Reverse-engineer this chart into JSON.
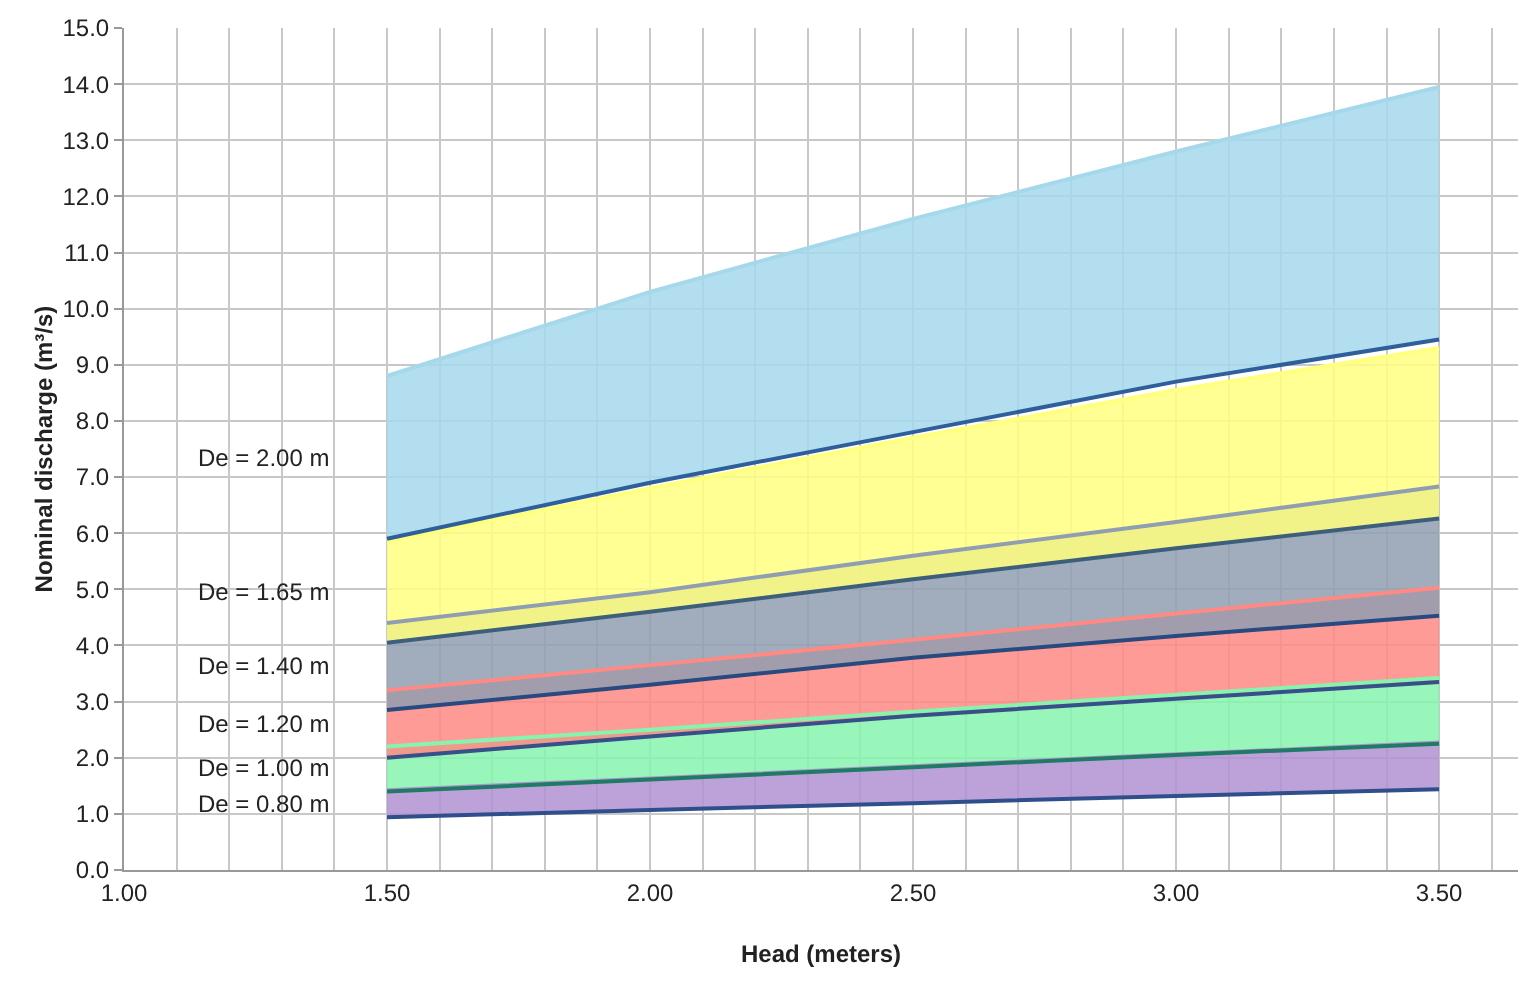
{
  "chart_data": {
    "type": "area",
    "xlabel": "Head (meters)",
    "ylabel": "Nominal discharge (m³/s)",
    "x": [
      1.5,
      2.0,
      2.5,
      3.0,
      3.5
    ],
    "series": [
      {
        "type": "line",
        "color": "#2e4f8c",
        "values": [
          0.94,
          1.07,
          1.19,
          1.32,
          1.44
        ]
      },
      {
        "name": "De = 0.80 m",
        "color": "#b092d2",
        "values": [
          1.42,
          1.63,
          1.85,
          2.06,
          2.27
        ]
      },
      {
        "type": "line",
        "color": "#1f7a66",
        "values": [
          1.4,
          1.61,
          1.83,
          2.05,
          2.25
        ]
      },
      {
        "name": "De = 1.00 m",
        "color": "#86f4ae",
        "values": [
          2.2,
          2.5,
          2.82,
          3.12,
          3.42
        ]
      },
      {
        "type": "line",
        "color": "#37508a",
        "values": [
          2.0,
          2.38,
          2.75,
          3.05,
          3.35
        ]
      },
      {
        "name": "De = 1.20 m",
        "color": "#ff8a84",
        "values": [
          3.2,
          3.65,
          4.1,
          4.57,
          5.03
        ]
      },
      {
        "type": "line",
        "color": "#294a80",
        "values": [
          2.85,
          3.3,
          3.78,
          4.17,
          4.53
        ]
      },
      {
        "name": "De = 1.40 m",
        "color": "#909eb2",
        "values": [
          4.4,
          4.95,
          5.6,
          6.2,
          6.83
        ]
      },
      {
        "type": "line",
        "color": "#3d5f7c",
        "values": [
          4.05,
          4.6,
          5.18,
          5.73,
          6.26
        ]
      },
      {
        "name": "De = 1.65 m",
        "color": "#ffff80",
        "values": [
          5.85,
          6.8,
          7.7,
          8.55,
          9.3
        ]
      },
      {
        "type": "line",
        "color": "#2f5f9a",
        "values": [
          5.9,
          6.9,
          7.8,
          8.7,
          9.45
        ]
      },
      {
        "name": "De = 2.00 m",
        "color": "#a6d8ec",
        "values": [
          8.8,
          10.3,
          11.6,
          12.8,
          13.95
        ]
      }
    ],
    "xlim": [
      1.0,
      3.65
    ],
    "xticks": [
      {
        "value": 1.0,
        "label": "1.00"
      },
      {
        "value": 1.1,
        "label": null
      },
      {
        "value": 1.2,
        "label": null
      },
      {
        "value": 1.3,
        "label": null
      },
      {
        "value": 1.4,
        "label": null
      },
      {
        "value": 1.5,
        "label": "1.50"
      },
      {
        "value": 1.6,
        "label": null
      },
      {
        "value": 1.7,
        "label": null
      },
      {
        "value": 1.8,
        "label": null
      },
      {
        "value": 1.9,
        "label": null
      },
      {
        "value": 2.0,
        "label": "2.00"
      },
      {
        "value": 2.1,
        "label": null
      },
      {
        "value": 2.2,
        "label": null
      },
      {
        "value": 2.3,
        "label": null
      },
      {
        "value": 2.4,
        "label": null
      },
      {
        "value": 2.5,
        "label": "2.50"
      },
      {
        "value": 2.6,
        "label": null
      },
      {
        "value": 2.7,
        "label": null
      },
      {
        "value": 2.8,
        "label": null
      },
      {
        "value": 2.9,
        "label": null
      },
      {
        "value": 3.0,
        "label": "3.00"
      },
      {
        "value": 3.1,
        "label": null
      },
      {
        "value": 3.2,
        "label": null
      },
      {
        "value": 3.3,
        "label": null
      },
      {
        "value": 3.4,
        "label": null
      },
      {
        "value": 3.5,
        "label": "3.50"
      },
      {
        "value": 3.6,
        "label": null
      }
    ],
    "ylim": [
      0,
      15
    ],
    "yticks": [
      {
        "value": 0,
        "label": "0.0"
      },
      {
        "value": 1,
        "label": "1.0"
      },
      {
        "value": 2,
        "label": "2.0"
      },
      {
        "value": 3,
        "label": "3.0"
      },
      {
        "value": 4,
        "label": "4.0"
      },
      {
        "value": 5,
        "label": "5.0"
      },
      {
        "value": 6,
        "label": "6.0"
      },
      {
        "value": 7,
        "label": "7.0"
      },
      {
        "value": 8,
        "label": "8.0"
      },
      {
        "value": 9,
        "label": "9.0"
      },
      {
        "value": 10,
        "label": "10.0"
      },
      {
        "value": 11,
        "label": "11.0"
      },
      {
        "value": 12,
        "label": "12.0"
      },
      {
        "value": 13,
        "label": "13.0"
      },
      {
        "value": 14,
        "label": "14.0"
      },
      {
        "value": 15,
        "label": "15.0"
      }
    ],
    "grid": true,
    "legend": false
  }
}
